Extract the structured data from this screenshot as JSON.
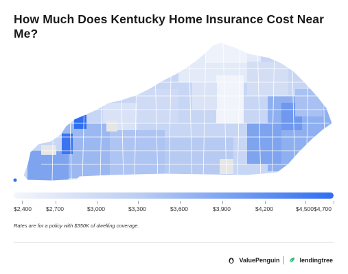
{
  "title": "How Much Does Kentucky Home Insurance Cost Near Me?",
  "colors": {
    "scale_low": "#f4f6fb",
    "scale_mid": "#b9ccf2",
    "scale_high": "#2f6ef0",
    "no_data": "#e6e6e6"
  },
  "legend": {
    "ticks": [
      "$2,400",
      "$2,700",
      "$3,000",
      "$3,300",
      "$3,600",
      "$3,900",
      "$4,200",
      "$4,500",
      "$4,700"
    ]
  },
  "footnote": "Rates are for a policy with $350K of dwelling coverage.",
  "brand": {
    "valuepenguin": "ValuePenguin",
    "lendingtree": "lendingtree",
    "valuepenguin_icon": "penguin-icon",
    "lendingtree_icon": "leaf-icon"
  }
}
